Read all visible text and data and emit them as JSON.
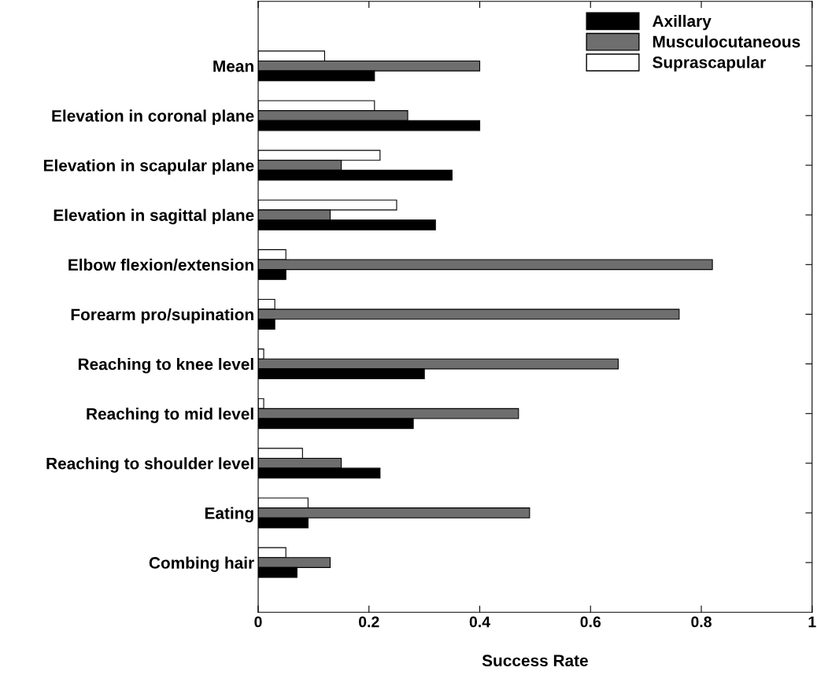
{
  "chart_data": {
    "type": "bar",
    "orientation": "horizontal",
    "xlabel": "Success Rate",
    "categories": [
      "Mean",
      "Elevation in coronal plane",
      "Elevation in scapular plane",
      "Elevation in sagittal plane",
      "Elbow flexion/extension",
      "Forearm pro/supination",
      "Reaching to knee level",
      "Reaching to mid level",
      "Reaching to shoulder level",
      "Eating",
      "Combing hair"
    ],
    "series": [
      {
        "name": "Suprascapular",
        "color": "#ffffff",
        "values": [
          0.12,
          0.21,
          0.22,
          0.25,
          0.05,
          0.03,
          0.01,
          0.01,
          0.08,
          0.09,
          0.05
        ]
      },
      {
        "name": "Musculocutaneous",
        "color": "#6e6e6e",
        "values": [
          0.4,
          0.27,
          0.15,
          0.13,
          0.82,
          0.76,
          0.65,
          0.47,
          0.15,
          0.49,
          0.13
        ]
      },
      {
        "name": "Axillary",
        "color": "#000000",
        "values": [
          0.21,
          0.4,
          0.35,
          0.32,
          0.05,
          0.03,
          0.3,
          0.28,
          0.22,
          0.09,
          0.07
        ]
      }
    ],
    "xlim": [
      0,
      1
    ],
    "xticks": [
      0,
      0.2,
      0.4,
      0.6,
      0.8,
      1
    ],
    "grid": false,
    "legend": "top right"
  }
}
